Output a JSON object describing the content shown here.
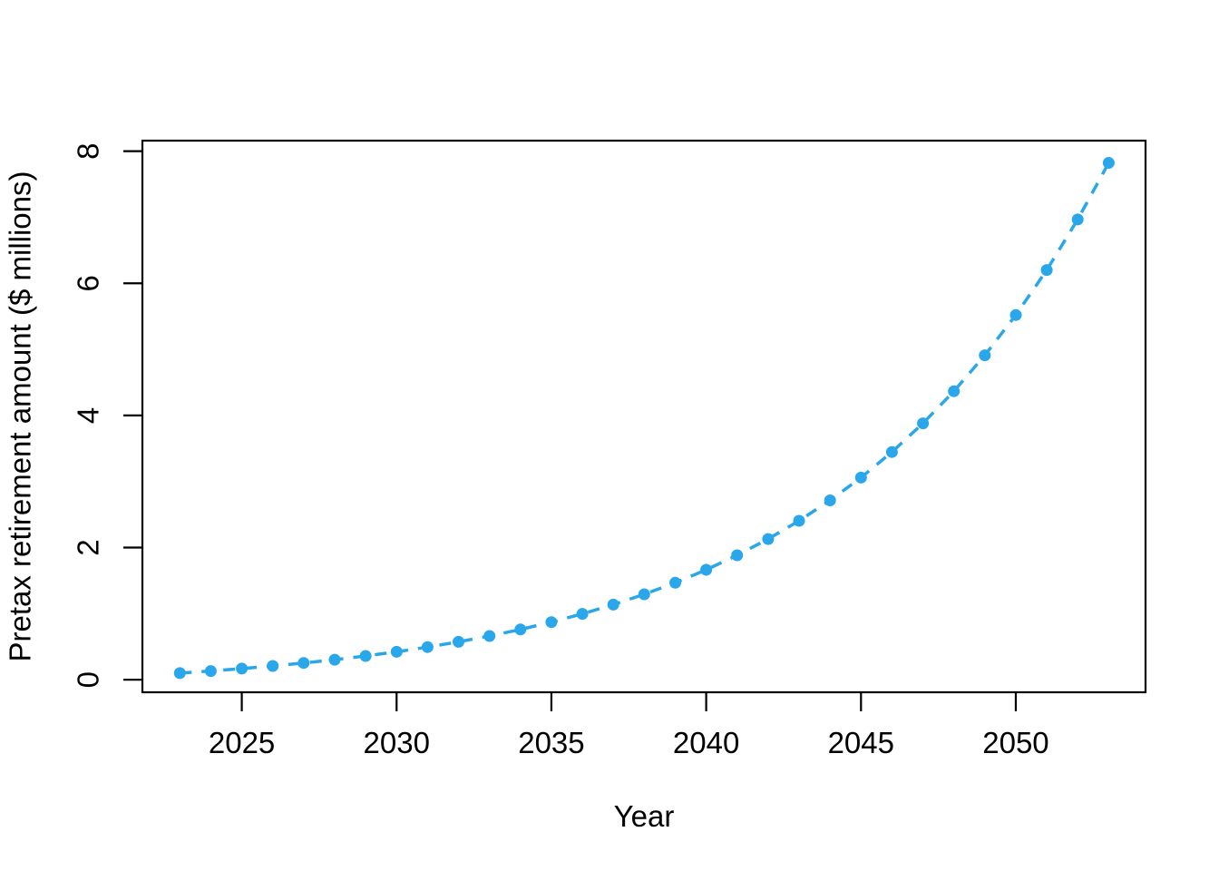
{
  "figure": {
    "background": "#ffffff"
  },
  "chart_data": {
    "type": "scatter",
    "title": "",
    "xlabel": "Year",
    "ylabel": "Pretax retirement amount ($ millions)",
    "x": [
      2023,
      2024,
      2025,
      2026,
      2027,
      2028,
      2029,
      2030,
      2031,
      2032,
      2033,
      2034,
      2035,
      2036,
      2037,
      2038,
      2039,
      2040,
      2041,
      2042,
      2043,
      2044,
      2045,
      2046,
      2047,
      2048,
      2049,
      2050,
      2051,
      2052,
      2053
    ],
    "series": [
      {
        "name": "pretax-retirement-amount",
        "values": [
          0.1,
          0.132,
          0.168,
          0.208,
          0.253,
          0.303,
          0.36,
          0.423,
          0.494,
          0.573,
          0.662,
          0.761,
          0.872,
          0.997,
          1.137,
          1.293,
          1.468,
          1.664,
          1.884,
          2.13,
          2.406,
          2.714,
          3.06,
          3.447,
          3.881,
          4.367,
          4.911,
          5.52,
          6.202,
          6.967,
          7.823
        ]
      }
    ],
    "x_tick_labels": [
      "2025",
      "2030",
      "2035",
      "2040",
      "2045",
      "2050"
    ],
    "x_tick_values": [
      2025,
      2030,
      2035,
      2040,
      2045,
      2050
    ],
    "y_tick_labels": [
      "0",
      "2",
      "4",
      "6",
      "8"
    ],
    "y_tick_values": [
      0,
      2,
      4,
      6,
      8
    ],
    "xlim": [
      2021.79,
      2054.19
    ],
    "ylim": [
      -0.19,
      8.16
    ],
    "grid": false,
    "legend": "none",
    "marker_color": "#2AA7EA",
    "line_color": "#2AA7EA",
    "line_style": "dashed",
    "axis_color": "#000000"
  }
}
